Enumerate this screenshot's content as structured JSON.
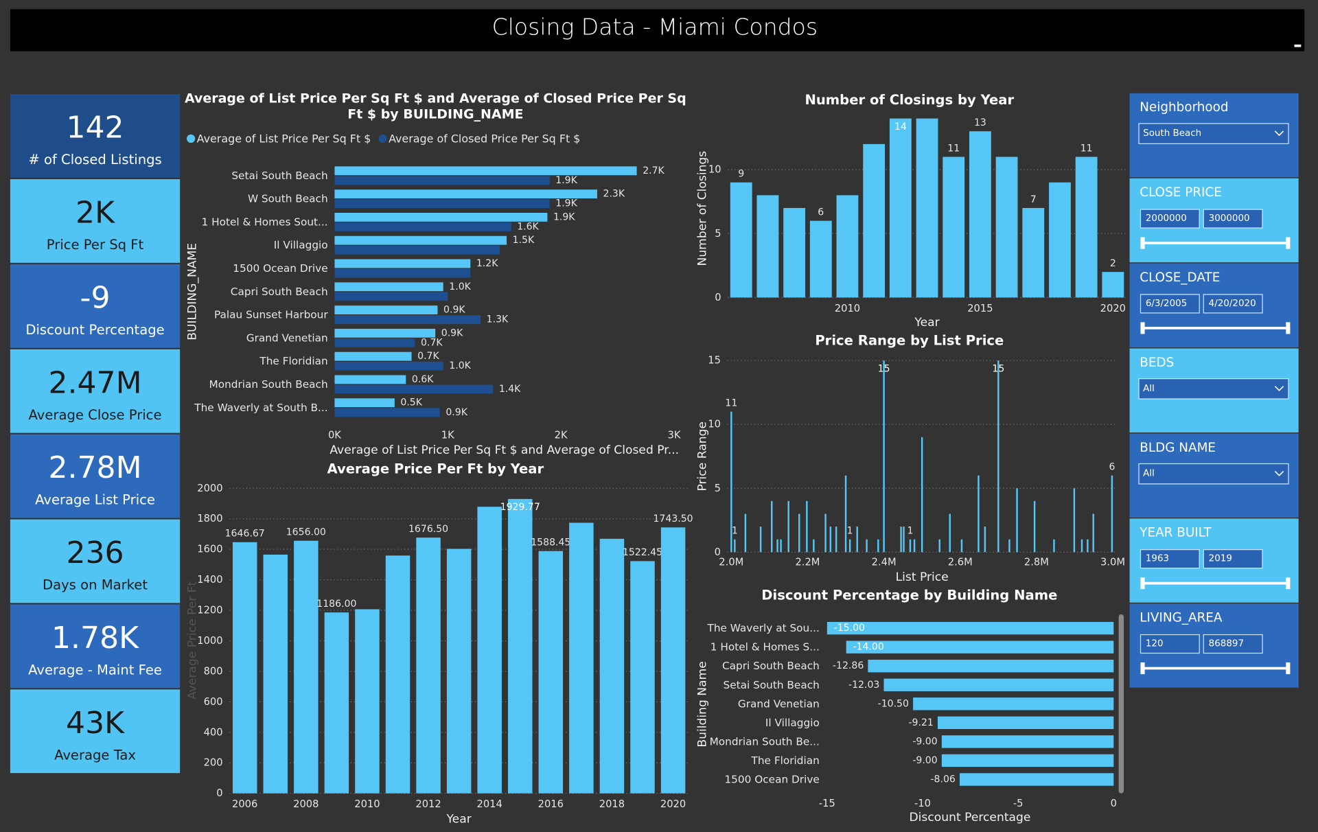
{
  "header": {
    "title": "Closing Data - Miami Condos"
  },
  "kpis": [
    {
      "value": "142",
      "label": "# of Closed Listings"
    },
    {
      "value": "2K",
      "label": "Price Per Sq Ft"
    },
    {
      "value": "-9",
      "label": "Discount Percentage"
    },
    {
      "value": "2.47M",
      "label": "Average Close Price"
    },
    {
      "value": "2.78M",
      "label": "Average List Price"
    },
    {
      "value": "236",
      "label": "Days on Market"
    },
    {
      "value": "1.78K",
      "label": "Average - Maint Fee"
    },
    {
      "value": "43K",
      "label": "Average Tax"
    }
  ],
  "slicers": [
    {
      "title": "Neighborhood",
      "selected": "South Beach"
    },
    {
      "title": "CLOSE PRICE",
      "from": "2000000",
      "to": "3000000"
    },
    {
      "title": "CLOSE_DATE",
      "from": "6/3/2005",
      "to": "4/20/2020"
    },
    {
      "title": "BEDS",
      "selected": "All"
    },
    {
      "title": "BLDG NAME",
      "selected": "All"
    },
    {
      "title": "YEAR BUILT",
      "from": "1963",
      "to": "2019"
    },
    {
      "title": "LIVING_AREA",
      "from": "120",
      "to": "868897"
    }
  ],
  "chart_data": [
    {
      "type": "bar",
      "orientation": "horizontal",
      "title": "Average of List Price Per Sq Ft $ and Average of Closed Price Per Sq Ft $ by BUILDING_NAME",
      "categories": [
        "Setai South Beach",
        "W South Beach",
        "1 Hotel & Homes Sout...",
        "Il Villaggio",
        "1500 Ocean Drive",
        "Capri South Beach",
        "Palau Sunset Harbour",
        "Grand Venetian",
        "The Floridian",
        "Mondrian South Beach",
        "The Waverly at South B..."
      ],
      "series": [
        {
          "name": "Average of List Price Per Sq Ft $",
          "color": "#55c6f5",
          "values": [
            2670,
            2320,
            1880,
            1520,
            1200,
            960,
            910,
            890,
            680,
            630,
            530
          ],
          "value_labels": [
            "2.7K",
            "2.3K",
            "1.9K",
            "1.5K",
            "1.2K",
            "1.0K",
            "0.9K",
            "0.9K",
            "0.7K",
            "0.6K",
            "0.5K"
          ]
        },
        {
          "name": "Average of Closed Price Per Sq Ft $",
          "color": "#1e4f91",
          "values": [
            1900,
            1900,
            1560,
            1460,
            1200,
            1000,
            1290,
            710,
            960,
            1400,
            930
          ],
          "value_labels": [
            "1.9K",
            "1.9K",
            "1.6K",
            null,
            null,
            null,
            "1.3K",
            "0.7K",
            "1.0K",
            "1.4K",
            "0.9K"
          ]
        }
      ],
      "xlim": [
        0,
        3000
      ],
      "xticks": [
        {
          "value": 0,
          "label": "0K"
        },
        {
          "value": 1000,
          "label": "1K"
        },
        {
          "value": 2000,
          "label": "2K"
        },
        {
          "value": 3000,
          "label": "3K"
        }
      ],
      "x_label": "Average of List Price Per Sq Ft $ and Average of Closed Pr...",
      "y_label": "BUILDING_NAME",
      "legend": "top-left"
    },
    {
      "type": "bar",
      "title": "Number of Closings by Year",
      "x": [
        2006,
        2007,
        2008,
        2009,
        2010,
        2011,
        2012,
        2013,
        2014,
        2015,
        2016,
        2017,
        2018,
        2019,
        2020
      ],
      "values": [
        9,
        8,
        7,
        6,
        8,
        12,
        14,
        14,
        11,
        13,
        11,
        7,
        9,
        11,
        2
      ],
      "value_labels": [
        "9",
        null,
        null,
        "6",
        null,
        null,
        "14",
        null,
        "11",
        "13",
        null,
        "7",
        null,
        "11",
        "2"
      ],
      "color": "#55c6f5",
      "xlim": [
        2005.5,
        2020.5
      ],
      "xticks": [
        2010,
        2015,
        2020
      ],
      "ylim": [
        0,
        14
      ],
      "yticks": [
        0,
        5,
        10
      ],
      "grid": true,
      "x_label": "Year",
      "y_label": "Number of Closings"
    },
    {
      "type": "bar",
      "title": "Price Range by List Price",
      "x": [
        2000000,
        2009000,
        2037000,
        2077000,
        2106000,
        2121000,
        2130000,
        2150000,
        2178000,
        2198000,
        2216000,
        2247000,
        2260000,
        2275000,
        2300000,
        2311000,
        2330000,
        2355000,
        2385000,
        2400000,
        2445000,
        2452000,
        2469000,
        2480000,
        2500000,
        2546000,
        2573000,
        2604000,
        2648000,
        2665000,
        2700000,
        2729000,
        2749000,
        2795000,
        2846000,
        2899000,
        2919000,
        2934000,
        2949000,
        2998000
      ],
      "values": [
        11,
        1,
        3,
        2,
        4,
        1,
        1,
        4,
        3,
        4,
        1,
        3,
        2,
        2,
        6,
        1,
        2,
        1,
        1,
        15,
        2,
        2,
        1,
        1,
        9,
        1,
        3,
        1,
        6,
        2,
        15,
        1,
        5,
        4,
        1,
        5,
        1,
        1,
        3,
        6
      ],
      "value_labels": [
        "11",
        "1",
        null,
        null,
        null,
        null,
        null,
        null,
        null,
        null,
        null,
        null,
        null,
        null,
        null,
        "1",
        null,
        null,
        null,
        "15",
        null,
        null,
        "1",
        null,
        null,
        null,
        null,
        null,
        null,
        null,
        "15",
        null,
        null,
        null,
        null,
        null,
        null,
        null,
        null,
        "6"
      ],
      "color": "#55c6f5",
      "xlim": [
        1990000,
        3010000
      ],
      "xticks": [
        {
          "value": 2000000,
          "label": "2.0M"
        },
        {
          "value": 2200000,
          "label": "2.2M"
        },
        {
          "value": 2400000,
          "label": "2.4M"
        },
        {
          "value": 2600000,
          "label": "2.6M"
        },
        {
          "value": 2800000,
          "label": "2.8M"
        },
        {
          "value": 3000000,
          "label": "3.0M"
        }
      ],
      "ylim": [
        0,
        15
      ],
      "yticks": [
        0,
        5,
        10,
        15
      ],
      "grid": true,
      "x_label": "List Price",
      "y_label": "Price Range"
    },
    {
      "type": "bar",
      "orientation": "horizontal",
      "title": "Discount Percentage by Building Name",
      "categories": [
        "The Waverly at Sou...",
        "1 Hotel & Homes S...",
        "Capri South Beach",
        "Setai South Beach",
        "Grand Venetian",
        "Il Villaggio",
        "Mondrian South Be...",
        "The Floridian",
        "1500 Ocean Drive"
      ],
      "values": [
        -15,
        -14,
        -12.86,
        -12.03,
        -10.5,
        -9.21,
        -9,
        -9,
        -8.06
      ],
      "value_labels": [
        "-15.00",
        "-14.00",
        "-12.86",
        "-12.03",
        "-10.50",
        "-9.21",
        "-9.00",
        "-9.00",
        "-8.06"
      ],
      "color": "#55c6f5",
      "xlim": [
        -15,
        0
      ],
      "xticks": [
        -15,
        -10,
        -5,
        0
      ],
      "x_label": "Discount Percentage",
      "y_label": "Building Name"
    },
    {
      "type": "bar",
      "title": "Average Price Per Ft by Year",
      "x": [
        2006,
        2007,
        2008,
        2009,
        2010,
        2011,
        2012,
        2013,
        2014,
        2015,
        2016,
        2017,
        2018,
        2019,
        2020
      ],
      "values": [
        1646.67,
        1565,
        1656,
        1186,
        1207,
        1559,
        1676.5,
        1603,
        1879,
        1929.77,
        1588.45,
        1774,
        1669,
        1522.45,
        1743.5
      ],
      "value_labels": [
        "1646.67",
        null,
        "1656.00",
        "1186.00",
        null,
        null,
        "1676.50",
        null,
        null,
        "1929.77",
        "1588.45",
        null,
        null,
        "1522.45",
        "1743.50"
      ],
      "color": "#55c6f5",
      "xlim": [
        2005.5,
        2020.5
      ],
      "xticks": [
        2006,
        2008,
        2010,
        2012,
        2014,
        2016,
        2018,
        2020
      ],
      "ylim": [
        0,
        2000
      ],
      "yticks": [
        0,
        200,
        400,
        600,
        800,
        1000,
        1200,
        1400,
        1600,
        1800,
        2000
      ],
      "grid": true,
      "x_label": "Year",
      "y_label": "Average Price Per Ft"
    }
  ]
}
